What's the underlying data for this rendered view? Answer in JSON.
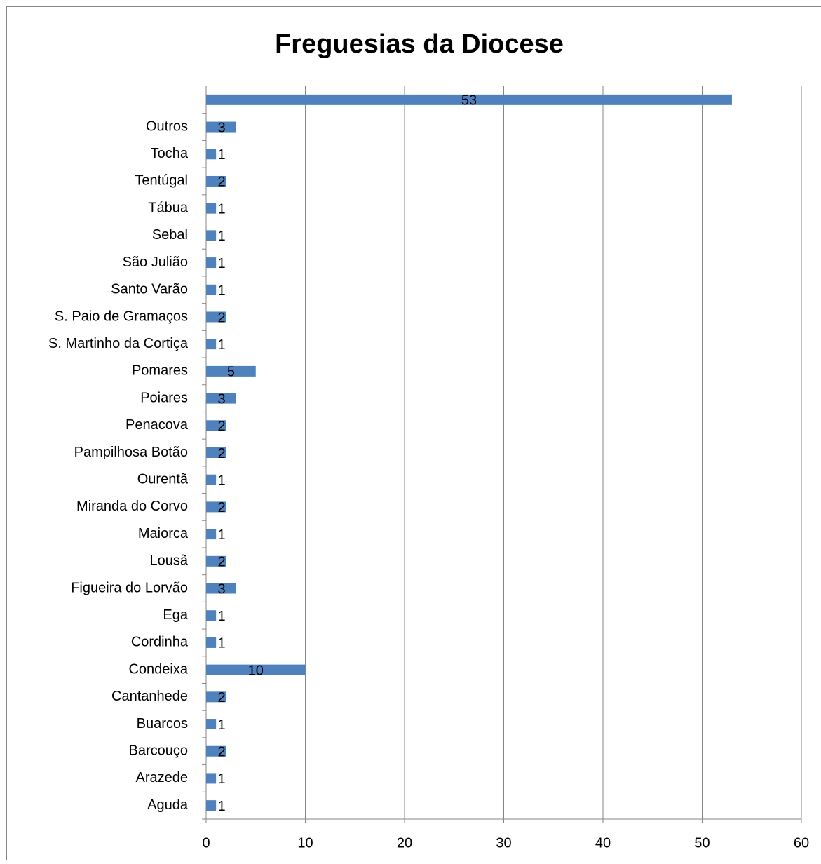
{
  "chart_data": {
    "type": "bar",
    "orientation": "horizontal",
    "title": "Freguesias da Diocese",
    "categories": [
      "Aguda",
      "Arazede",
      "Barcouço",
      "Buarcos",
      "Cantanhede",
      "Condeixa",
      "Cordinha",
      "Ega",
      "Figueira do Lorvão",
      "Lousã",
      "Maiorca",
      "Miranda do Corvo",
      "Ourentã",
      "Pampilhosa Botão",
      "Penacova",
      "Poiares",
      "Pomares",
      "S. Martinho da Cortiça",
      "S. Paio de Gramaços",
      "Santo Varão",
      "São Julião",
      "Sebal",
      "Tábua",
      "Tentúgal",
      "Tocha",
      "Outros",
      null
    ],
    "values": [
      1,
      1,
      2,
      1,
      2,
      10,
      1,
      1,
      3,
      2,
      1,
      2,
      1,
      2,
      2,
      3,
      5,
      1,
      2,
      1,
      1,
      1,
      1,
      2,
      1,
      3,
      53
    ],
    "color": "#4f81bd",
    "xlim": [
      0,
      60
    ],
    "xticks": [
      0,
      10,
      20,
      30,
      40,
      50,
      60
    ],
    "grid": true
  }
}
